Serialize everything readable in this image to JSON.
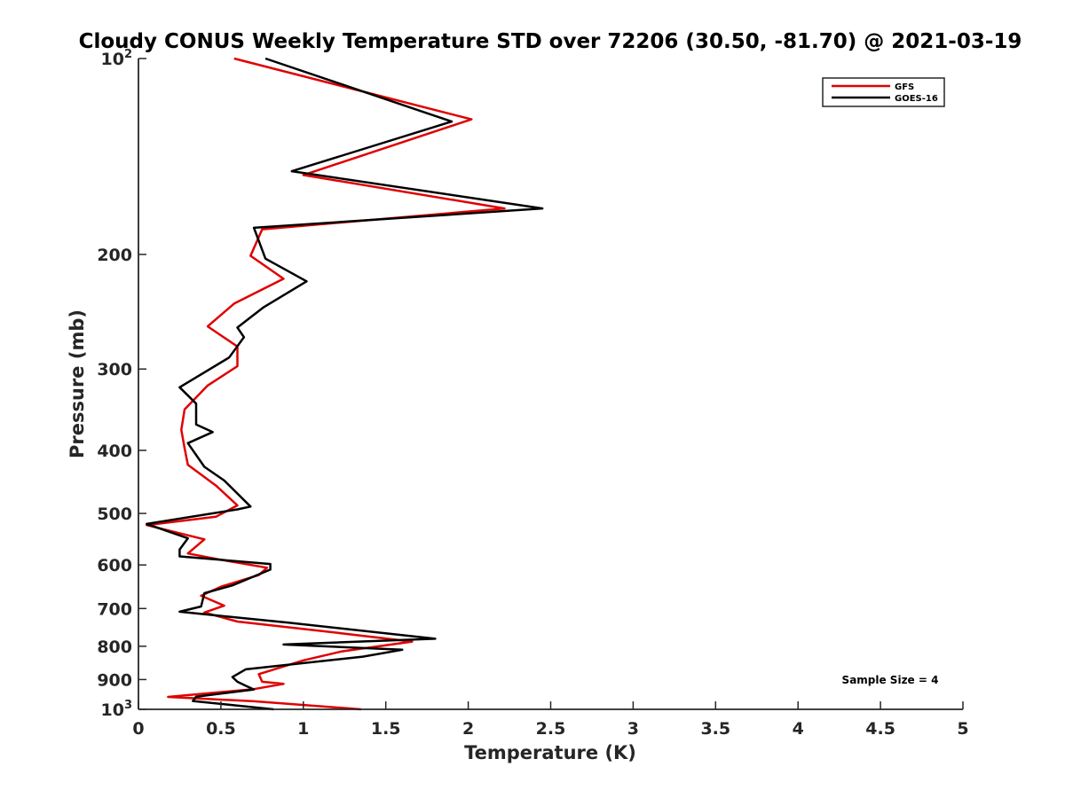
{
  "chart_data": {
    "type": "line",
    "title": "Cloudy CONUS Weekly Temperature STD over 72206 (30.50, -81.70) @ 2021-03-19",
    "xlabel": "Temperature (K)",
    "ylabel": "Pressure (mb)",
    "xlim": [
      0,
      5
    ],
    "ylim": [
      100,
      1000
    ],
    "yscale": "log",
    "yreversed": true,
    "x_ticks": [
      0,
      0.5,
      1,
      1.5,
      2,
      2.5,
      3,
      3.5,
      4,
      4.5,
      5
    ],
    "x_tick_labels": [
      "0",
      "0.5",
      "1",
      "1.5",
      "2",
      "2.5",
      "3",
      "3.5",
      "4",
      "4.5",
      "5"
    ],
    "y_ticks": [
      100,
      200,
      300,
      400,
      500,
      600,
      700,
      800,
      900,
      1000
    ],
    "y_tick_labels": [
      {
        "value": 100,
        "base": "10",
        "exp": "2"
      },
      {
        "value": 200,
        "base": "200",
        "exp": ""
      },
      {
        "value": 300,
        "base": "300",
        "exp": ""
      },
      {
        "value": 400,
        "base": "400",
        "exp": ""
      },
      {
        "value": 500,
        "base": "500",
        "exp": ""
      },
      {
        "value": 600,
        "base": "600",
        "exp": ""
      },
      {
        "value": 700,
        "base": "700",
        "exp": ""
      },
      {
        "value": 800,
        "base": "800",
        "exp": ""
      },
      {
        "value": 900,
        "base": "900",
        "exp": ""
      },
      {
        "value": 1000,
        "base": "10",
        "exp": "3"
      }
    ],
    "grid": false,
    "legend_position": "top-right",
    "annotation": "Sample Size = 4",
    "series": [
      {
        "name": "GFS",
        "color": "#e00000",
        "points": [
          [
            0.58,
            100
          ],
          [
            2.02,
            124
          ],
          [
            1.0,
            151
          ],
          [
            2.22,
            170
          ],
          [
            0.75,
            183
          ],
          [
            0.68,
            201
          ],
          [
            0.88,
            218
          ],
          [
            0.58,
            238
          ],
          [
            0.42,
            258
          ],
          [
            0.6,
            277
          ],
          [
            0.6,
            297
          ],
          [
            0.42,
            318
          ],
          [
            0.28,
            346
          ],
          [
            0.26,
            372
          ],
          [
            0.28,
            397
          ],
          [
            0.3,
            421
          ],
          [
            0.47,
            453
          ],
          [
            0.6,
            486
          ],
          [
            0.47,
            506
          ],
          [
            0.05,
            521
          ],
          [
            0.4,
            548
          ],
          [
            0.3,
            576
          ],
          [
            0.5,
            589
          ],
          [
            0.78,
            606
          ],
          [
            0.73,
            622
          ],
          [
            0.5,
            648
          ],
          [
            0.38,
            669
          ],
          [
            0.52,
            693
          ],
          [
            0.4,
            710
          ],
          [
            0.6,
            733
          ],
          [
            1.23,
            764
          ],
          [
            1.66,
            787
          ],
          [
            1.23,
            815
          ],
          [
            1.0,
            841
          ],
          [
            0.73,
            883
          ],
          [
            0.75,
            907
          ],
          [
            0.88,
            914
          ],
          [
            0.7,
            931
          ],
          [
            0.18,
            957
          ],
          [
            0.7,
            972
          ],
          [
            1.35,
            1000
          ]
        ]
      },
      {
        "name": "GOES-16",
        "color": "#000000",
        "points": [
          [
            0.77,
            100
          ],
          [
            1.9,
            125
          ],
          [
            0.93,
            149
          ],
          [
            2.45,
            170
          ],
          [
            0.7,
            182
          ],
          [
            0.77,
            203
          ],
          [
            1.02,
            220
          ],
          [
            0.76,
            241
          ],
          [
            0.6,
            259
          ],
          [
            0.64,
            268
          ],
          [
            0.55,
            288
          ],
          [
            0.25,
            320
          ],
          [
            0.35,
            339
          ],
          [
            0.35,
            365
          ],
          [
            0.45,
            375
          ],
          [
            0.3,
            390
          ],
          [
            0.4,
            424
          ],
          [
            0.52,
            445
          ],
          [
            0.68,
            488
          ],
          [
            0.6,
            493
          ],
          [
            0.05,
            519
          ],
          [
            0.3,
            546
          ],
          [
            0.25,
            568
          ],
          [
            0.25,
            582
          ],
          [
            0.8,
            598
          ],
          [
            0.8,
            610
          ],
          [
            0.57,
            645
          ],
          [
            0.4,
            663
          ],
          [
            0.38,
            695
          ],
          [
            0.25,
            708
          ],
          [
            0.91,
            736
          ],
          [
            1.8,
            779
          ],
          [
            0.88,
            795
          ],
          [
            1.6,
            810
          ],
          [
            1.36,
            830
          ],
          [
            0.65,
            868
          ],
          [
            0.57,
            892
          ],
          [
            0.6,
            907
          ],
          [
            0.65,
            920
          ],
          [
            0.7,
            932
          ],
          [
            0.35,
            956
          ],
          [
            0.33,
            971
          ],
          [
            0.82,
            1000
          ]
        ]
      }
    ]
  }
}
